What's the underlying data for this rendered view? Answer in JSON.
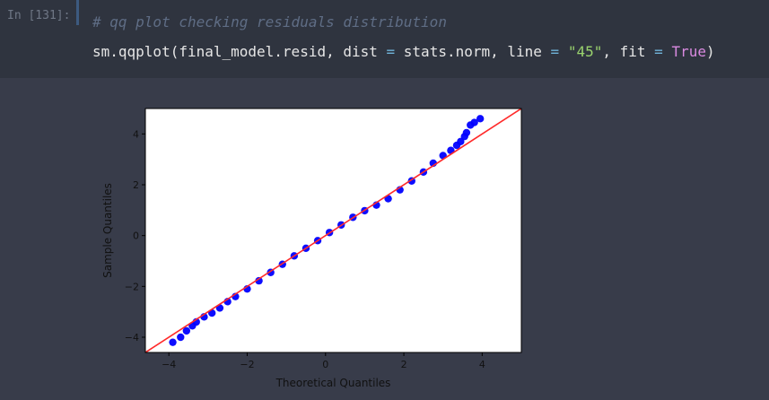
{
  "cell": {
    "prompt": "In [131]:",
    "comment": "# qq plot checking residuals distribution",
    "code": {
      "fn": "sm.qqplot(final_model.resid, dist ",
      "eq1": "=",
      "mid1": " stats.norm, line ",
      "eq2": "=",
      "str": "\"45\"",
      "mid2": ", fit ",
      "eq3": "=",
      "kw": "True",
      "end": ")"
    }
  },
  "colors": {
    "page_bg": "#383c4a",
    "input_bg": "#2f343f",
    "point_color": "#0000ff",
    "line_color": "#ff2a2a"
  },
  "chart_data": {
    "type": "scatter",
    "xlabel": "Theoretical Quantiles",
    "ylabel": "Sample Quantiles",
    "xlim": [
      -4.6,
      5.0
    ],
    "ylim": [
      -4.6,
      5.0
    ],
    "xticks": [
      -4,
      -2,
      0,
      2,
      4
    ],
    "yticks": [
      -4,
      -2,
      0,
      2,
      4
    ],
    "xtick_labels": [
      "−4",
      "−2",
      "0",
      "2",
      "4"
    ],
    "ytick_labels": [
      "−4",
      "−2",
      "0",
      "2",
      "4"
    ],
    "grid": false,
    "reference_line": {
      "slope": 1,
      "intercept": 0,
      "label": "45"
    },
    "points": [
      [
        -3.9,
        -4.2
      ],
      [
        -3.7,
        -4.0
      ],
      [
        -3.55,
        -3.75
      ],
      [
        -3.4,
        -3.55
      ],
      [
        -3.3,
        -3.4
      ],
      [
        -3.1,
        -3.2
      ],
      [
        -2.9,
        -3.05
      ],
      [
        -2.7,
        -2.85
      ],
      [
        -2.5,
        -2.6
      ],
      [
        -2.3,
        -2.4
      ],
      [
        -2.0,
        -2.1
      ],
      [
        -1.7,
        -1.78
      ],
      [
        -1.4,
        -1.45
      ],
      [
        -1.1,
        -1.13
      ],
      [
        -0.8,
        -0.8
      ],
      [
        -0.5,
        -0.5
      ],
      [
        -0.2,
        -0.2
      ],
      [
        0.1,
        0.12
      ],
      [
        0.4,
        0.42
      ],
      [
        0.7,
        0.72
      ],
      [
        1.0,
        0.98
      ],
      [
        1.3,
        1.2
      ],
      [
        1.6,
        1.45
      ],
      [
        1.9,
        1.8
      ],
      [
        2.2,
        2.15
      ],
      [
        2.5,
        2.5
      ],
      [
        2.75,
        2.85
      ],
      [
        3.0,
        3.15
      ],
      [
        3.2,
        3.35
      ],
      [
        3.35,
        3.55
      ],
      [
        3.45,
        3.7
      ],
      [
        3.55,
        3.9
      ],
      [
        3.6,
        4.05
      ],
      [
        3.7,
        4.35
      ],
      [
        3.8,
        4.45
      ],
      [
        3.95,
        4.6
      ]
    ]
  }
}
